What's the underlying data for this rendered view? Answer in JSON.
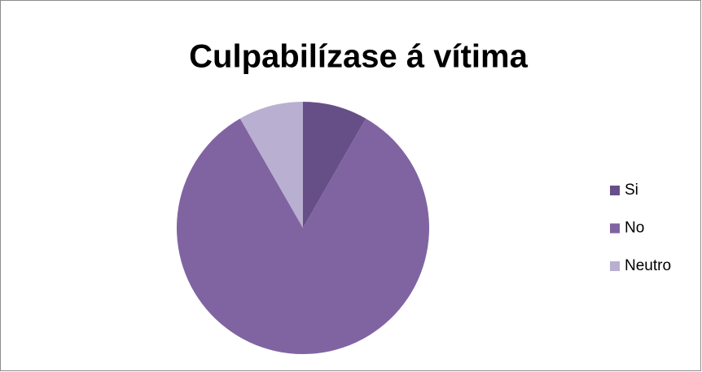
{
  "chart_data": {
    "type": "pie",
    "title": "Culpabilízase á vítima",
    "categories": [
      "Si",
      "No",
      "Neutro"
    ],
    "values": [
      8.3,
      83.4,
      8.3
    ],
    "colors": [
      "#664f87",
      "#8064a2",
      "#b9afd0"
    ],
    "legend": "right"
  }
}
